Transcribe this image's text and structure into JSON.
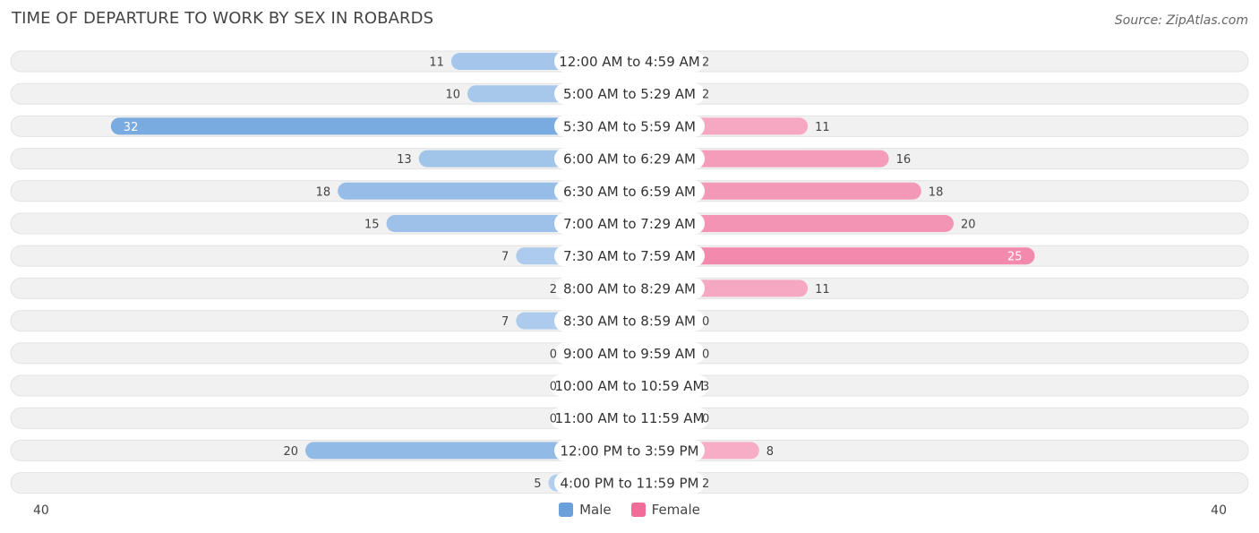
{
  "header": {
    "title": "TIME OF DEPARTURE TO WORK BY SEX IN ROBARDS",
    "source": "Source: ZipAtlas.com"
  },
  "colors": {
    "male": "#6aa1dd",
    "female": "#f06d99",
    "row_bg": "#f1f1f1",
    "label_bg": "#ffffff"
  },
  "legend": {
    "male_label": "Male",
    "female_label": "Female"
  },
  "axis": {
    "left_label": "40",
    "right_label": "40"
  },
  "chart_data": {
    "type": "bar",
    "orientation": "horizontal-diverging",
    "title": "TIME OF DEPARTURE TO WORK BY SEX IN ROBARDS",
    "xlim": [
      -40,
      40
    ],
    "legend_position": "bottom-center",
    "categories": [
      "12:00 AM to 4:59 AM",
      "5:00 AM to 5:29 AM",
      "5:30 AM to 5:59 AM",
      "6:00 AM to 6:29 AM",
      "6:30 AM to 6:59 AM",
      "7:00 AM to 7:29 AM",
      "7:30 AM to 7:59 AM",
      "8:00 AM to 8:29 AM",
      "8:30 AM to 8:59 AM",
      "9:00 AM to 9:59 AM",
      "10:00 AM to 10:59 AM",
      "11:00 AM to 11:59 AM",
      "12:00 PM to 3:59 PM",
      "4:00 PM to 11:59 PM"
    ],
    "series": [
      {
        "name": "Male",
        "values": [
          11,
          10,
          32,
          13,
          18,
          15,
          7,
          2,
          7,
          0,
          0,
          0,
          20,
          5
        ]
      },
      {
        "name": "Female",
        "values": [
          2,
          2,
          11,
          16,
          18,
          20,
          25,
          11,
          0,
          0,
          3,
          0,
          8,
          2
        ]
      }
    ]
  }
}
